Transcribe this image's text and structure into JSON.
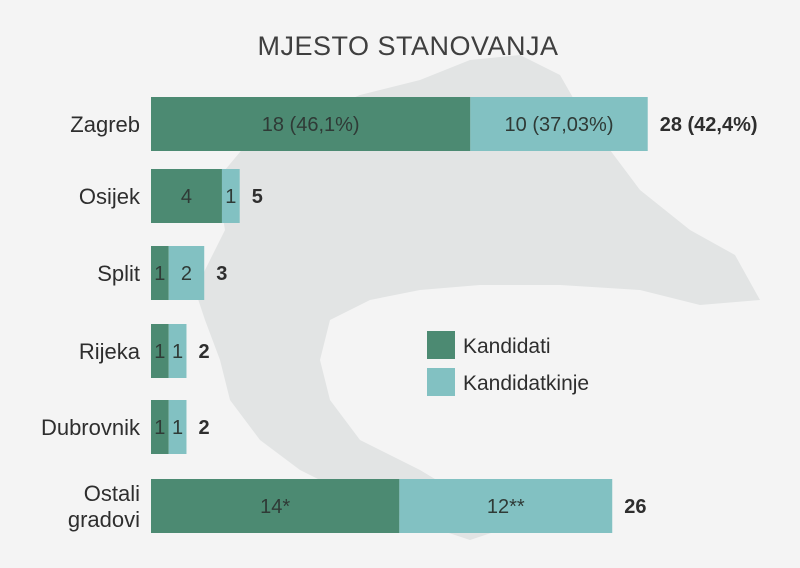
{
  "chart_data": {
    "type": "bar",
    "stacked": true,
    "orientation": "horizontal",
    "title": "MJESTO STANOVANJA",
    "categories": [
      {
        "label": [
          "Zagreb"
        ]
      },
      {
        "label": [
          "Osijek"
        ]
      },
      {
        "label": [
          "Split"
        ]
      },
      {
        "label": [
          "Rijeka"
        ]
      },
      {
        "label": [
          "Dubrovnik"
        ]
      },
      {
        "label": [
          "Ostali",
          "gradovi"
        ]
      }
    ],
    "series": [
      {
        "name": "Kandidati",
        "color": "#4c8a72",
        "values": [
          18,
          4,
          1,
          1,
          1,
          14
        ],
        "labels": [
          "18 (46,1%)",
          "4",
          "1",
          "1",
          "1",
          "14*"
        ]
      },
      {
        "name": "Kandidatkinje",
        "color": "#82c1c2",
        "values": [
          10,
          1,
          2,
          1,
          1,
          12
        ],
        "labels": [
          "10 (37,03%)",
          "1",
          "2",
          "1",
          "1",
          "12**"
        ]
      }
    ],
    "totals": [
      "28 (42,4%)",
      "5",
      "3",
      "2",
      "2",
      "26"
    ],
    "legend": {
      "position": "right"
    },
    "grid": false
  },
  "colors": {
    "background": "#f4f4f4",
    "map_silhouette": "#e2e4e4",
    "kandidati": "#4c8a72",
    "kandidatkinje": "#82c1c2"
  }
}
